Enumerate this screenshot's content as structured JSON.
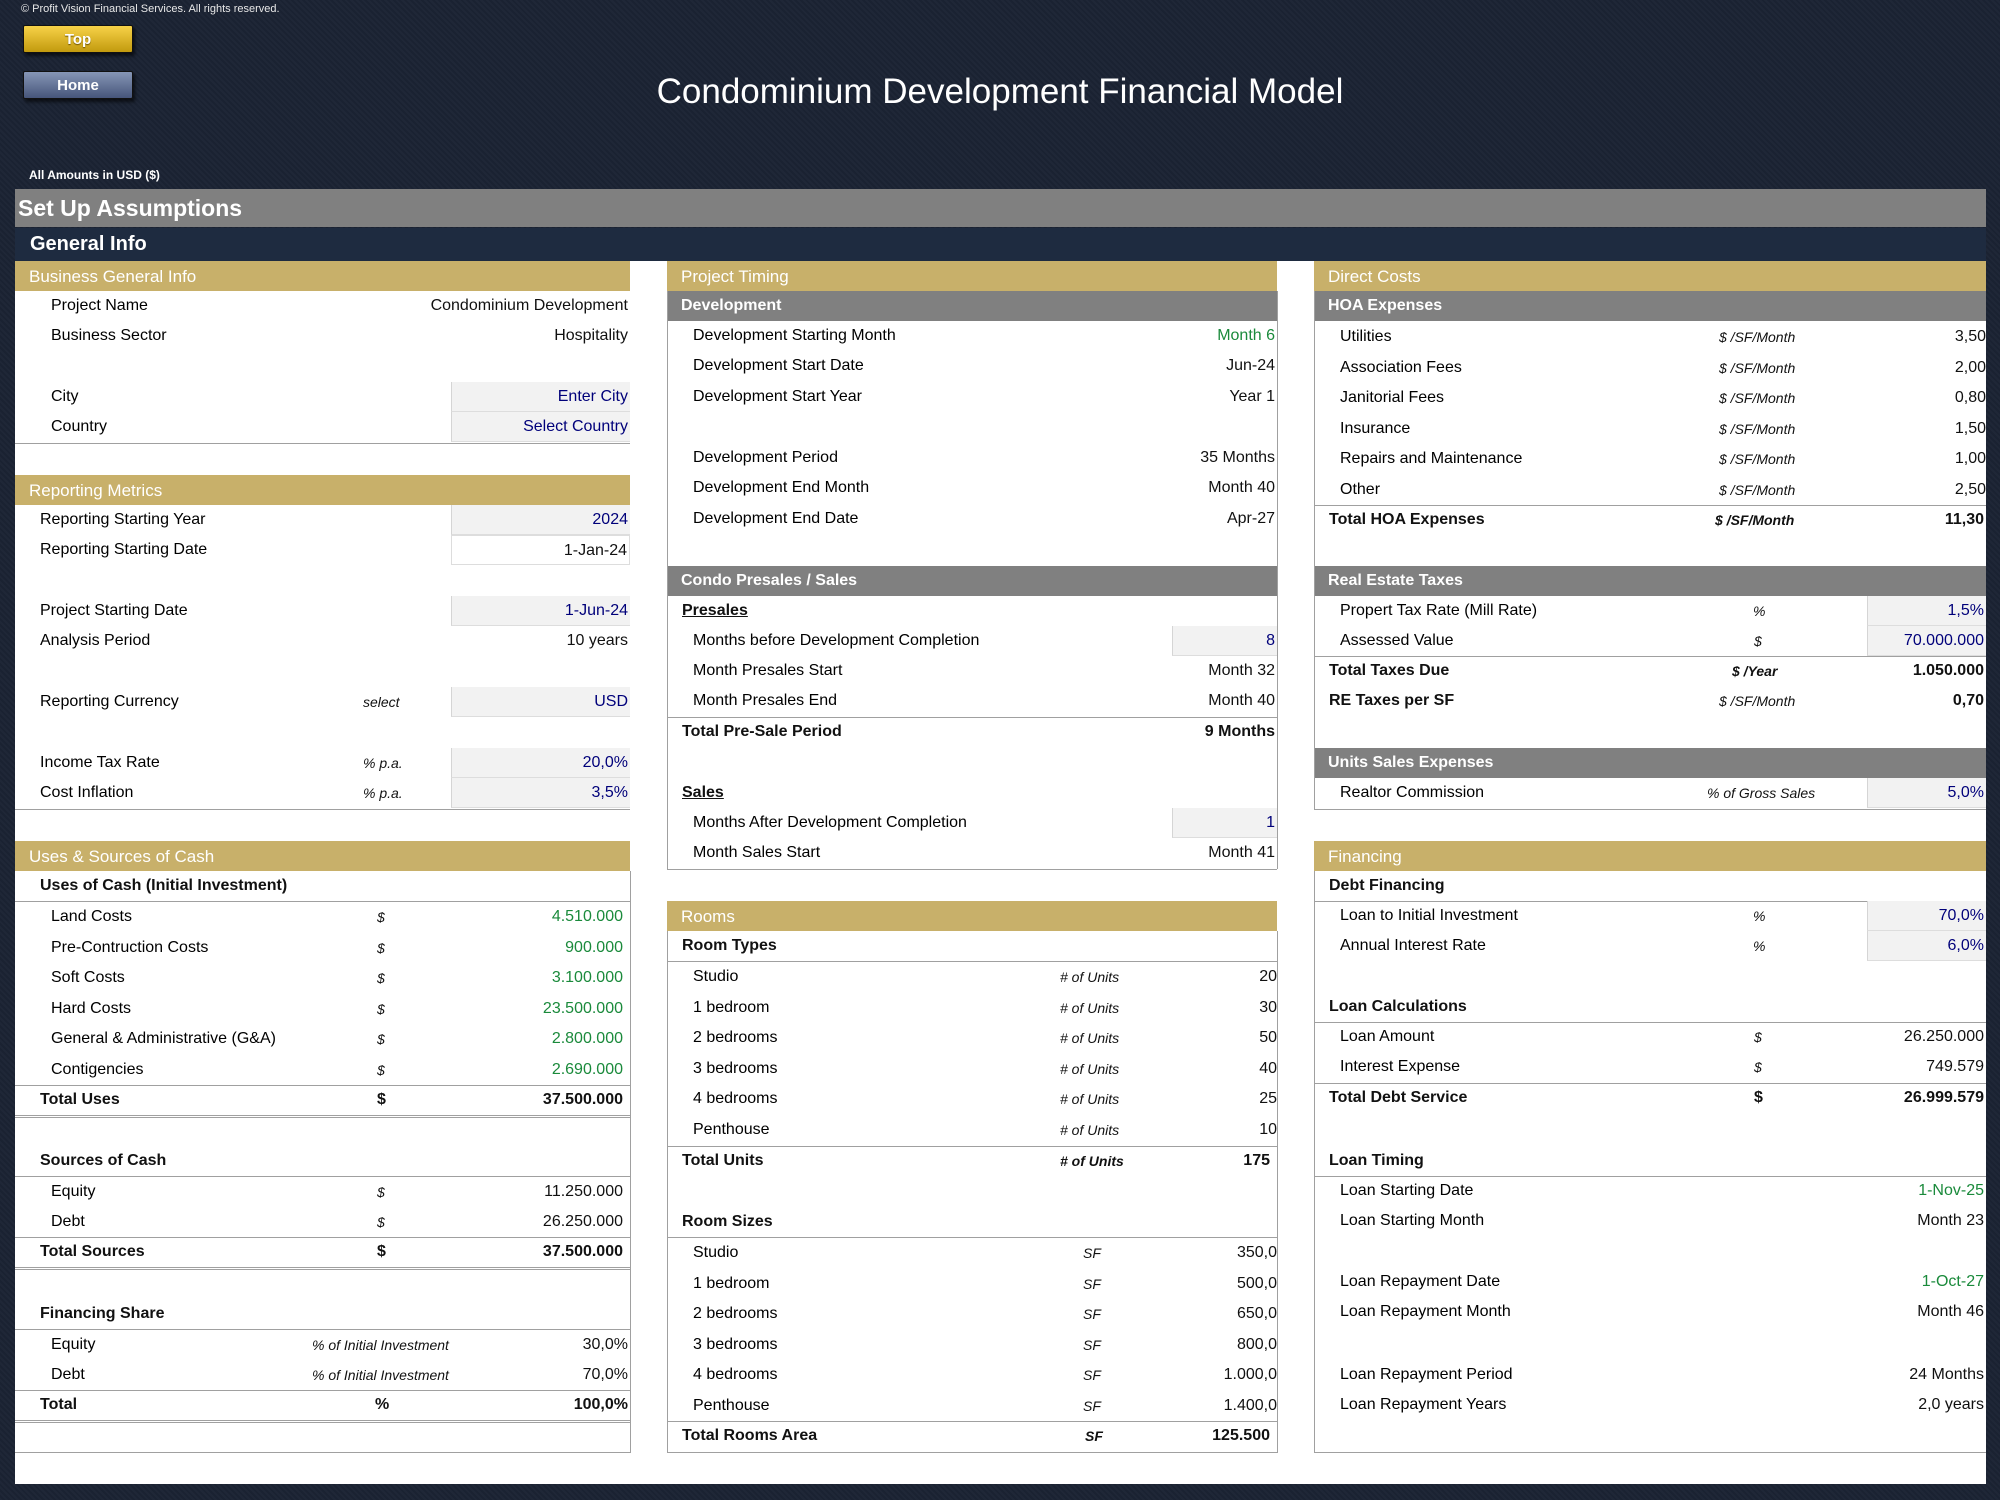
{
  "header": {
    "copyright": "© Profit Vision Financial Services. All rights reserved.",
    "top_button": "Top",
    "home_button": "Home",
    "title": "Condominium Development Financial Model",
    "amounts": "All Amounts in  USD ($)",
    "setup_title": "Set Up Assumptions",
    "general_title": "General Info"
  },
  "business": {
    "title": "Business General Info",
    "project_name_label": "Project Name",
    "project_name": "Condominium Development",
    "sector_label": "Business Sector",
    "sector": "Hospitality",
    "city_label": "City",
    "city": "Enter City",
    "country_label": "Country",
    "country": "Select Country"
  },
  "reporting": {
    "title": "Reporting Metrics",
    "start_year_label": "Reporting Starting Year",
    "start_year": "2024",
    "start_date_label": "Reporting Starting Date",
    "start_date": "1-Jan-24",
    "project_start_label": "Project Starting Date",
    "project_start": "1-Jun-24",
    "analysis_label": "Analysis Period",
    "analysis": "10 years",
    "currency_label": "Reporting Currency",
    "currency_unit": "select",
    "currency": "USD",
    "tax_label": "Income Tax Rate",
    "tax_unit": "% p.a.",
    "tax": "20,0%",
    "inflation_label": "Cost Inflation",
    "inflation_unit": "% p.a.",
    "inflation": "3,5%"
  },
  "uses_sources": {
    "title": "Uses & Sources of Cash",
    "uses_header": "Uses of Cash (Initial Investment)",
    "uses": [
      {
        "label": "Land Costs",
        "unit": "$",
        "value": "4.510.000"
      },
      {
        "label": "Pre-Contruction Costs",
        "unit": "$",
        "value": "900.000"
      },
      {
        "label": "Soft Costs",
        "unit": "$",
        "value": "3.100.000"
      },
      {
        "label": "Hard Costs",
        "unit": "$",
        "value": "23.500.000"
      },
      {
        "label": "General & Administrative (G&A)",
        "unit": "$",
        "value": "2.800.000"
      },
      {
        "label": "Contigencies",
        "unit": "$",
        "value": "2.690.000"
      }
    ],
    "total_uses_label": "Total Uses",
    "total_uses_unit": "$",
    "total_uses": "37.500.000",
    "sources_header": "Sources of Cash",
    "sources": [
      {
        "label": "Equity",
        "unit": "$",
        "value": "11.250.000"
      },
      {
        "label": "Debt",
        "unit": "$",
        "value": "26.250.000"
      }
    ],
    "total_sources_label": "Total Sources",
    "total_sources_unit": "$",
    "total_sources": "37.500.000",
    "share_header": "Financing Share",
    "share": [
      {
        "label": "Equity",
        "unit": "% of Initial Investment",
        "value": "30,0%"
      },
      {
        "label": "Debt",
        "unit": "% of Initial Investment",
        "value": "70,0%"
      }
    ],
    "total_share_label": "Total",
    "total_share_unit": "%",
    "total_share": "100,0%"
  },
  "timing": {
    "title": "Project Timing",
    "dev_header": "Development",
    "dev_start_month_label": "Development Starting Month",
    "dev_start_month": "Month 6",
    "dev_start_date_label": "Development Start Date",
    "dev_start_date": "Jun-24",
    "dev_start_year_label": "Development Start Year",
    "dev_start_year": "Year 1",
    "dev_period_label": "Development Period",
    "dev_period": "35 Months",
    "dev_end_month_label": "Development End Month",
    "dev_end_month": "Month 40",
    "dev_end_date_label": "Development End Date",
    "dev_end_date": "Apr-27",
    "presales_header": "Condo Presales / Sales",
    "presales_sub": "Presales",
    "months_before_label": "Months before Development Completion",
    "months_before": "8",
    "presales_start_label": "Month Presales Start",
    "presales_start": "Month 32",
    "presales_end_label": "Month Presales End",
    "presales_end": "Month 40",
    "presale_period_label": "Total Pre-Sale Period",
    "presale_period": "9 Months",
    "sales_sub": "Sales",
    "months_after_label": "Months After Development Completion",
    "months_after": "1",
    "sales_start_label": "Month Sales Start",
    "sales_start": "Month 41"
  },
  "rooms": {
    "title": "Rooms",
    "types_header": "Room Types",
    "types": [
      {
        "label": "Studio",
        "unit": "# of Units",
        "value": "20"
      },
      {
        "label": "1 bedroom",
        "unit": "# of Units",
        "value": "30"
      },
      {
        "label": "2 bedrooms",
        "unit": "# of Units",
        "value": "50"
      },
      {
        "label": "3 bedrooms",
        "unit": "# of Units",
        "value": "40"
      },
      {
        "label": "4 bedrooms",
        "unit": "# of Units",
        "value": "25"
      },
      {
        "label": "Penthouse",
        "unit": "# of Units",
        "value": "10"
      }
    ],
    "total_units_label": "Total Units",
    "total_units_unit": "# of Units",
    "total_units": "175",
    "sizes_header": "Room Sizes",
    "sizes": [
      {
        "label": "Studio",
        "unit": "SF",
        "value": "350,0"
      },
      {
        "label": "1 bedroom",
        "unit": "SF",
        "value": "500,0"
      },
      {
        "label": "2 bedrooms",
        "unit": "SF",
        "value": "650,0"
      },
      {
        "label": "3 bedrooms",
        "unit": "SF",
        "value": "800,0"
      },
      {
        "label": "4 bedrooms",
        "unit": "SF",
        "value": "1.000,0"
      },
      {
        "label": "Penthouse",
        "unit": "SF",
        "value": "1.400,0"
      }
    ],
    "total_area_label": "Total Rooms Area",
    "total_area_unit": "SF",
    "total_area": "125.500"
  },
  "direct_costs": {
    "title": "Direct Costs",
    "hoa_header": "HOA Expenses",
    "hoa": [
      {
        "label": "Utilities",
        "unit": "$ /SF/Month",
        "value": "3,50"
      },
      {
        "label": "Association Fees",
        "unit": "$ /SF/Month",
        "value": "2,00"
      },
      {
        "label": "Janitorial Fees",
        "unit": "$ /SF/Month",
        "value": "0,80"
      },
      {
        "label": "Insurance",
        "unit": "$ /SF/Month",
        "value": "1,50"
      },
      {
        "label": "Repairs and Maintenance",
        "unit": "$ /SF/Month",
        "value": "1,00"
      },
      {
        "label": "Other",
        "unit": "$ /SF/Month",
        "value": "2,50"
      }
    ],
    "total_hoa_label": "Total HOA Expenses",
    "total_hoa_unit": "$ /SF/Month",
    "total_hoa": "11,30",
    "tax_header": "Real Estate Taxes",
    "mill_label": "Propert Tax Rate (Mill Rate)",
    "mill_unit": "%",
    "mill": "1,5%",
    "assessed_label": "Assessed Value",
    "assessed_unit": "$",
    "assessed": "70.000.000",
    "taxes_due_label": "Total Taxes Due",
    "taxes_due_unit": "$ /Year",
    "taxes_due": "1.050.000",
    "re_taxes_label": "RE Taxes per SF",
    "re_taxes_unit": "$ /SF/Month",
    "re_taxes": "0,70",
    "units_sales_header": "Units Sales Expenses",
    "realtor_label": "Realtor Commission",
    "realtor_unit": "% of Gross Sales",
    "realtor": "5,0%"
  },
  "financing": {
    "title": "Financing",
    "debt_header": "Debt Financing",
    "loan_ratio_label": "Loan to Initial Investment",
    "loan_ratio_unit": "%",
    "loan_ratio": "70,0%",
    "interest_label": "Annual Interest Rate",
    "interest_unit": "%",
    "interest": "6,0%",
    "calc_header": "Loan Calculations",
    "loan_amount_label": "Loan Amount",
    "loan_amount_unit": "$",
    "loan_amount": "26.250.000",
    "interest_exp_label": "Interest Expense",
    "interest_exp_unit": "$",
    "interest_exp": "749.579",
    "debt_service_label": "Total Debt Service",
    "debt_service_unit": "$",
    "debt_service": "26.999.579",
    "timing_header": "Loan Timing",
    "loan_start_date_label": "Loan Starting Date",
    "loan_start_date": "1-Nov-25",
    "loan_start_month_label": "Loan Starting Month",
    "loan_start_month": "Month 23",
    "repay_date_label": "Loan Repayment Date",
    "repay_date": "1-Oct-27",
    "repay_month_label": "Loan Repayment Month",
    "repay_month": "Month 46",
    "repay_period_label": "Loan Repayment Period",
    "repay_period": "24 Months",
    "repay_years_label": "Loan Repayment Years",
    "repay_years": "2,0 years"
  }
}
